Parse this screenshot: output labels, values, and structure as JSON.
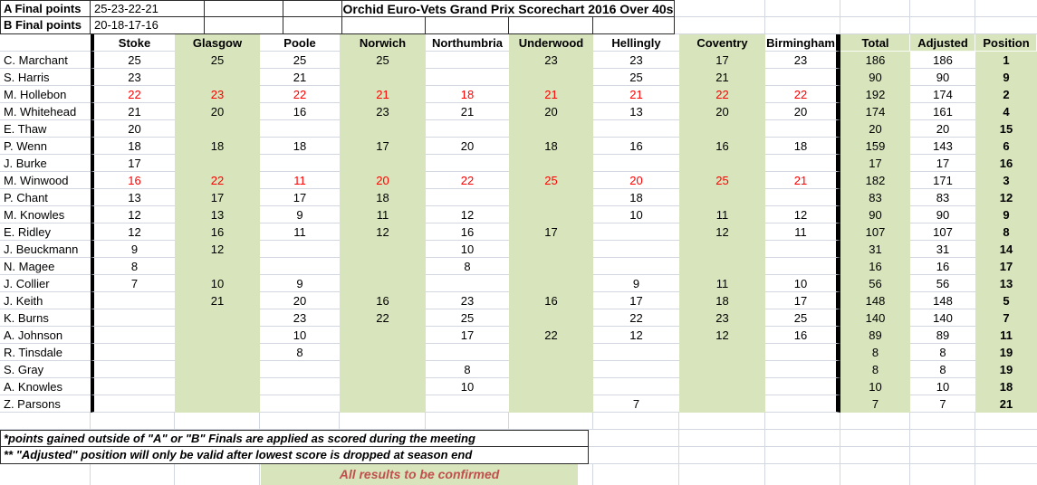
{
  "top": {
    "a_label": "A Final points",
    "a_points": "25-23-22-21",
    "b_label": "B Final points",
    "b_points": "20-18-17-16"
  },
  "header": {
    "title": "Orchid Euro-Vets Grand Prix Scorechart 2016 Over 40s"
  },
  "colors": {
    "green_fill": "#d8e4bc",
    "red_score": "#ff0000",
    "confirm_text": "#c0504d"
  },
  "table": {
    "venues": [
      "Stoke",
      "Glasgow",
      "Poole",
      "Norwich",
      "Northumbria",
      "Underwood",
      "Hellingly",
      "Coventry",
      "Birmingham"
    ],
    "summary": [
      "Total",
      "Adjusted",
      "Position"
    ],
    "rows": [
      {
        "name": "C. Marchant",
        "scores": [
          "25",
          "25",
          "25",
          "25",
          "",
          "23",
          "23",
          "17",
          "23"
        ],
        "red": false,
        "total": "186",
        "adjusted": "186",
        "position": "1"
      },
      {
        "name": "S. Harris",
        "scores": [
          "23",
          "",
          "21",
          "",
          "",
          "",
          "25",
          "21",
          ""
        ],
        "red": false,
        "total": "90",
        "adjusted": "90",
        "position": "9"
      },
      {
        "name": "M. Hollebon",
        "scores": [
          "22",
          "23",
          "22",
          "21",
          "18",
          "21",
          "21",
          "22",
          "22"
        ],
        "red": true,
        "total": "192",
        "adjusted": "174",
        "position": "2"
      },
      {
        "name": "M. Whitehead",
        "scores": [
          "21",
          "20",
          "16",
          "23",
          "21",
          "20",
          "13",
          "20",
          "20"
        ],
        "red": false,
        "total": "174",
        "adjusted": "161",
        "position": "4"
      },
      {
        "name": "E. Thaw",
        "scores": [
          "20",
          "",
          "",
          "",
          "",
          "",
          "",
          "",
          ""
        ],
        "red": false,
        "total": "20",
        "adjusted": "20",
        "position": "15"
      },
      {
        "name": "P. Wenn",
        "scores": [
          "18",
          "18",
          "18",
          "17",
          "20",
          "18",
          "16",
          "16",
          "18"
        ],
        "red": false,
        "total": "159",
        "adjusted": "143",
        "position": "6"
      },
      {
        "name": "J. Burke",
        "scores": [
          "17",
          "",
          "",
          "",
          "",
          "",
          "",
          "",
          ""
        ],
        "red": false,
        "total": "17",
        "adjusted": "17",
        "position": "16"
      },
      {
        "name": "M. Winwood",
        "scores": [
          "16",
          "22",
          "11",
          "20",
          "22",
          "25",
          "20",
          "25",
          "21"
        ],
        "red": true,
        "total": "182",
        "adjusted": "171",
        "position": "3"
      },
      {
        "name": "P. Chant",
        "scores": [
          "13",
          "17",
          "17",
          "18",
          "",
          "",
          "18",
          "",
          ""
        ],
        "red": false,
        "total": "83",
        "adjusted": "83",
        "position": "12"
      },
      {
        "name": "M. Knowles",
        "scores": [
          "12",
          "13",
          "9",
          "11",
          "12",
          "",
          "10",
          "11",
          "12"
        ],
        "red": false,
        "total": "90",
        "adjusted": "90",
        "position": "9"
      },
      {
        "name": "E. Ridley",
        "scores": [
          "12",
          "16",
          "11",
          "12",
          "16",
          "17",
          "",
          "12",
          "11"
        ],
        "red": false,
        "total": "107",
        "adjusted": "107",
        "position": "8"
      },
      {
        "name": "J. Beuckmann",
        "scores": [
          "9",
          "12",
          "",
          "",
          "10",
          "",
          "",
          "",
          ""
        ],
        "red": false,
        "total": "31",
        "adjusted": "31",
        "position": "14"
      },
      {
        "name": "N. Magee",
        "scores": [
          "8",
          "",
          "",
          "",
          "8",
          "",
          "",
          "",
          ""
        ],
        "red": false,
        "total": "16",
        "adjusted": "16",
        "position": "17"
      },
      {
        "name": "J. Collier",
        "scores": [
          "7",
          "10",
          "9",
          "",
          "",
          "",
          "9",
          "11",
          "10"
        ],
        "red": false,
        "total": "56",
        "adjusted": "56",
        "position": "13"
      },
      {
        "name": "J. Keith",
        "scores": [
          "",
          "21",
          "20",
          "16",
          "23",
          "16",
          "17",
          "18",
          "17"
        ],
        "red": false,
        "total": "148",
        "adjusted": "148",
        "position": "5"
      },
      {
        "name": "K. Burns",
        "scores": [
          "",
          "",
          "23",
          "22",
          "25",
          "",
          "22",
          "23",
          "25"
        ],
        "red": false,
        "total": "140",
        "adjusted": "140",
        "position": "7"
      },
      {
        "name": "A. Johnson",
        "scores": [
          "",
          "",
          "10",
          "",
          "17",
          "22",
          "12",
          "12",
          "16"
        ],
        "red": false,
        "total": "89",
        "adjusted": "89",
        "position": "11"
      },
      {
        "name": "R. Tinsdale",
        "scores": [
          "",
          "",
          "8",
          "",
          "",
          "",
          "",
          "",
          ""
        ],
        "red": false,
        "total": "8",
        "adjusted": "8",
        "position": "19"
      },
      {
        "name": "S. Gray",
        "scores": [
          "",
          "",
          "",
          "",
          "8",
          "",
          "",
          "",
          ""
        ],
        "red": false,
        "total": "8",
        "adjusted": "8",
        "position": "19"
      },
      {
        "name": "A. Knowles",
        "scores": [
          "",
          "",
          "",
          "",
          "10",
          "",
          "",
          "",
          ""
        ],
        "red": false,
        "total": "10",
        "adjusted": "10",
        "position": "18"
      },
      {
        "name": "Z. Parsons",
        "scores": [
          "",
          "",
          "",
          "",
          "",
          "",
          "7",
          "",
          ""
        ],
        "red": false,
        "total": "7",
        "adjusted": "7",
        "position": "21"
      }
    ]
  },
  "footer": {
    "note1": "*points gained outside of \"A\" or \"B\" Finals are applied as scored during the meeting",
    "note2": "** \"Adjusted\" position will only be valid after lowest score is dropped at season end",
    "confirm": "All results to be confirmed"
  }
}
